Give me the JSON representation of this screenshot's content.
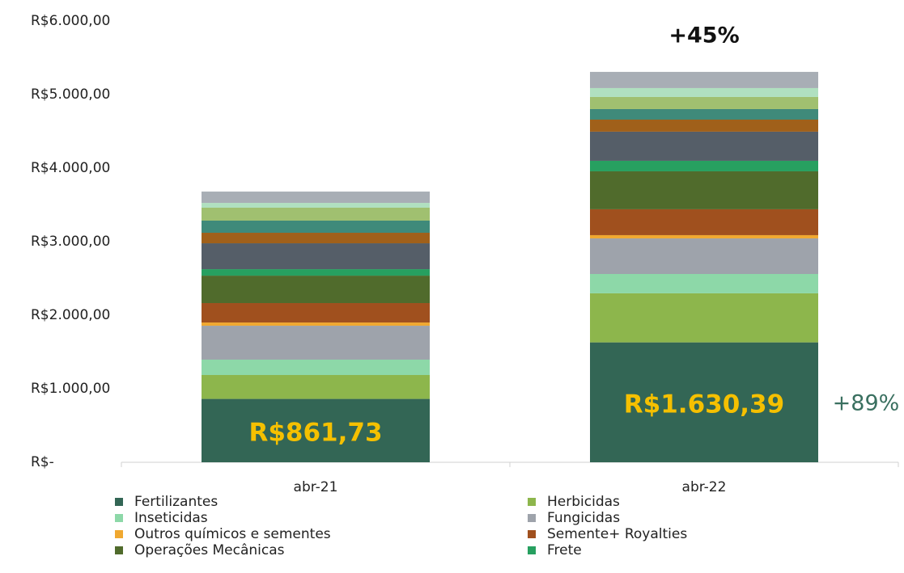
{
  "chart_data": {
    "type": "stacked_bar",
    "categories": [
      "abr-21",
      "abr-22"
    ],
    "ylim": [
      0,
      6000
    ],
    "yticks": [
      {
        "value": 0,
        "label": "R$-"
      },
      {
        "value": 1000,
        "label": "R$1.000,00"
      },
      {
        "value": 2000,
        "label": "R$2.000,00"
      },
      {
        "value": 3000,
        "label": "R$3.000,00"
      },
      {
        "value": 4000,
        "label": "R$4.000,00"
      },
      {
        "value": 5000,
        "label": "R$5.000,00"
      },
      {
        "value": 6000,
        "label": "R$6.000,00"
      }
    ],
    "series": [
      {
        "name": "Fertilizantes",
        "color": "#336655",
        "values": [
          861.73,
          1630.39
        ],
        "value_labels": [
          "R$861,73",
          "R$1.630,39"
        ]
      },
      {
        "name": "Herbicidas",
        "color": "#8db64c",
        "values": [
          325,
          667
        ]
      },
      {
        "name": "Inseticidas",
        "color": "#8dd8a8",
        "values": [
          209,
          263
        ]
      },
      {
        "name": "Fungicidas",
        "color": "#9ea3ab",
        "values": [
          461,
          484
        ]
      },
      {
        "name": "Outros químicos e sementes",
        "color": "#f0a830",
        "values": [
          44,
          44
        ]
      },
      {
        "name": "Semente+ Royalties",
        "color": "#a0501e",
        "values": [
          264,
          352
        ]
      },
      {
        "name": "Operações Mecânicas",
        "color": "#506b2c",
        "values": [
          373,
          516
        ]
      },
      {
        "name": "Frete",
        "color": "#27a060",
        "values": [
          88,
          143
        ]
      },
      {
        "name": null,
        "color": "#555e68",
        "values": [
          352,
          396
        ]
      },
      {
        "name": null,
        "color": "#a0601a",
        "values": [
          143,
          164
        ]
      },
      {
        "name": null,
        "color": "#3f8a7a",
        "values": [
          165,
          143
        ]
      },
      {
        "name": null,
        "color": "#a0c070",
        "values": [
          176,
          165
        ]
      },
      {
        "name": null,
        "color": "#b0e0c0",
        "values": [
          65,
          121
        ]
      },
      {
        "name": null,
        "color": "#a8aeb5",
        "values": [
          154,
          220
        ]
      }
    ],
    "annotations": [
      "+45%",
      "+89%"
    ]
  }
}
